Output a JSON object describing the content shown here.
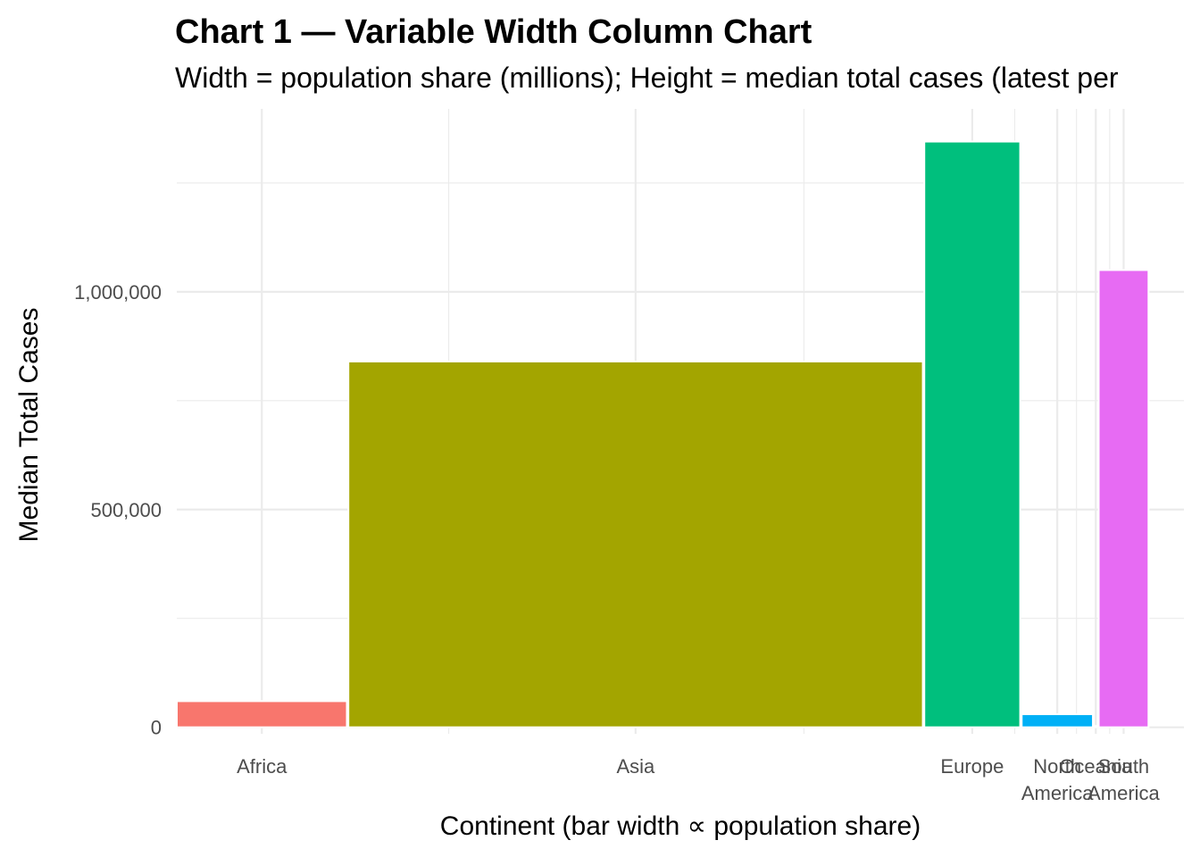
{
  "chart_data": {
    "type": "bar",
    "title": "Chart 1 — Variable Width Column Chart",
    "subtitle": "Width = population share (millions); Height = median total cases (latest per",
    "xlabel": "Continent (bar width ∝ population share)",
    "ylabel": "Median Total Cases",
    "ylim": [
      -15000,
      1420000
    ],
    "yticks": [
      0,
      500000,
      1000000
    ],
    "ytick_labels": [
      "0",
      "500,000",
      "1,000,000"
    ],
    "xlim": [
      0,
      5400
    ],
    "grid": true,
    "legend": "none",
    "bars": [
      {
        "category": "Africa",
        "label_lines": [
          "Africa"
        ],
        "x_start": 0,
        "x_end": 912,
        "value": 60000,
        "color": "#F8766D"
      },
      {
        "category": "Asia",
        "label_lines": [
          "Asia"
        ],
        "x_start": 920,
        "x_end": 4000,
        "value": 840000,
        "color": "#A3A500"
      },
      {
        "category": "Europe",
        "label_lines": [
          "Europe"
        ],
        "x_start": 4008,
        "x_end": 4522,
        "value": 1345000,
        "color": "#00BF7D"
      },
      {
        "category": "North America",
        "label_lines": [
          "North",
          "America"
        ],
        "x_start": 4530,
        "x_end": 4912,
        "value": 30000,
        "color": "#00B0F6"
      },
      {
        "category": "Oceania",
        "label_lines": [
          "Oceania"
        ],
        "x_start": 4920,
        "x_end": 4935,
        "value": 3000,
        "color": "#00BFC4"
      },
      {
        "category": "South America",
        "label_lines": [
          "South",
          "America"
        ],
        "x_start": 4943,
        "x_end": 5210,
        "value": 1050000,
        "color": "#E76BF3"
      }
    ]
  }
}
